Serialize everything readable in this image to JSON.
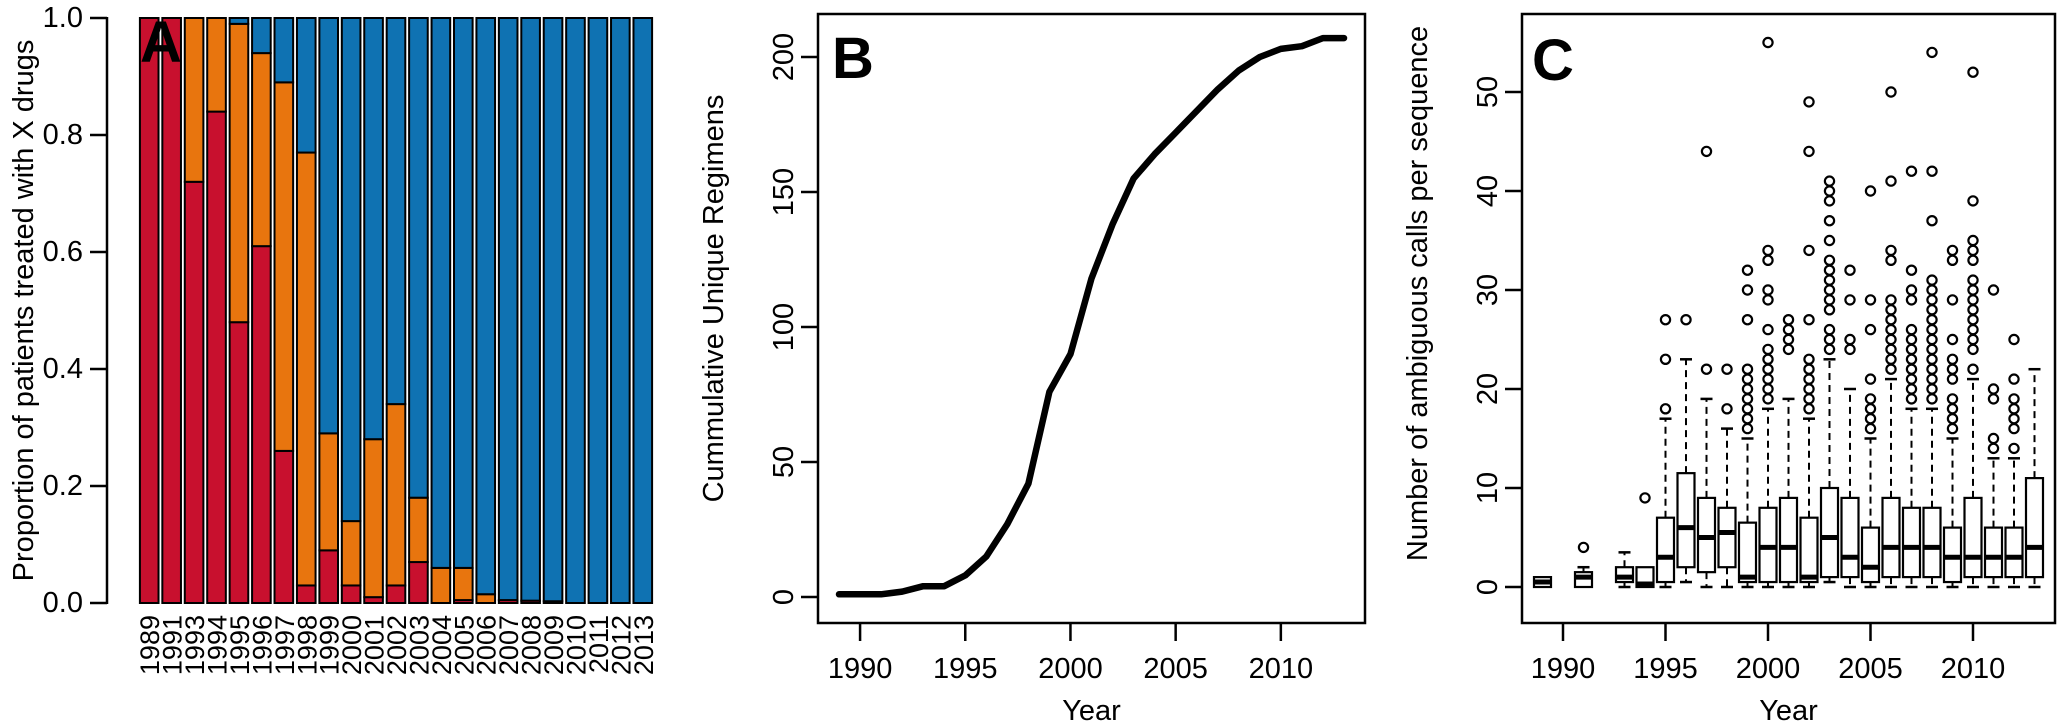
{
  "figure": {
    "background": "#ffffff",
    "text_color": "#000000"
  },
  "chart_data": [
    {
      "type": "bar",
      "panel_label": "A",
      "panel_label_color": "#ffffff",
      "xlabel": "",
      "ylabel": "Proportion of patients treated with X drugs",
      "ylim": [
        0,
        1
      ],
      "yticks": [
        "0.0",
        "0.2",
        "0.4",
        "0.6",
        "0.8",
        "1.0"
      ],
      "grid": false,
      "legend": "none",
      "categories": [
        1989,
        1991,
        1993,
        1994,
        1995,
        1996,
        1997,
        1998,
        1999,
        2000,
        2001,
        2002,
        2003,
        2004,
        2005,
        2006,
        2007,
        2008,
        2009,
        2010,
        2011,
        2012,
        2013
      ],
      "series": [
        {
          "name": "red",
          "color": "#C8102E",
          "values": [
            1,
            1,
            0.72,
            0.84,
            0.48,
            0.61,
            0.26,
            0.03,
            0.09,
            0.03,
            0.01,
            0.03,
            0.07,
            0,
            0.005,
            0,
            0.005,
            0.004,
            0.003,
            0,
            0,
            0,
            0
          ]
        },
        {
          "name": "orange",
          "color": "#E8750E",
          "values": [
            0,
            0,
            0.28,
            0.16,
            0.51,
            0.33,
            0.63,
            0.74,
            0.2,
            0.11,
            0.27,
            0.31,
            0.11,
            0.06,
            0.055,
            0.015,
            0,
            0,
            0,
            0,
            0,
            0,
            0
          ]
        },
        {
          "name": "blue",
          "color": "#0F72B2",
          "values": [
            0,
            0,
            0,
            0,
            0.01,
            0.06,
            0.11,
            0.23,
            0.71,
            0.86,
            0.72,
            0.66,
            0.82,
            0.94,
            0.94,
            0.985,
            0.995,
            0.996,
            0.997,
            1,
            1,
            1,
            1
          ]
        }
      ]
    },
    {
      "type": "line",
      "panel_label": "B",
      "panel_label_color": "#000000",
      "xlabel": "Year",
      "ylabel": "Cummulative Unique Regimens",
      "xticks": [
        1990,
        1995,
        2000,
        2005,
        2010
      ],
      "yticks": [
        0,
        50,
        100,
        150,
        200
      ],
      "xlim": [
        1988,
        2014
      ],
      "ylim": [
        -12,
        216
      ],
      "grid": false,
      "line_color": "#000000",
      "x": [
        1989,
        1990,
        1991,
        1992,
        1993,
        1994,
        1995,
        1996,
        1997,
        1998,
        1999,
        2000,
        2001,
        2002,
        2003,
        2004,
        2005,
        2006,
        2007,
        2008,
        2009,
        2010,
        2011,
        2012,
        2013
      ],
      "y": [
        1,
        1,
        1,
        2,
        4,
        4,
        8,
        15,
        27,
        42,
        76,
        90,
        118,
        138,
        155,
        164,
        172,
        180,
        188,
        195,
        200,
        203,
        204,
        207,
        207
      ]
    },
    {
      "type": "boxplot",
      "panel_label": "C",
      "panel_label_color": "#000000",
      "xlabel": "Year",
      "ylabel": "Number of ambiguous calls per sequence",
      "xticks": [
        1990,
        1995,
        2000,
        2005,
        2010
      ],
      "yticks": [
        0,
        10,
        20,
        30,
        40,
        50
      ],
      "xlim": [
        1988,
        2014
      ],
      "ylim": [
        -3.5,
        58
      ],
      "grid": false,
      "boxes": [
        {
          "year": 1989,
          "low": 0,
          "q1": 0,
          "med": 0.5,
          "q3": 1,
          "high": 1,
          "outliers": []
        },
        {
          "year": 1991,
          "low": 0,
          "q1": 0,
          "med": 1,
          "q3": 1.5,
          "high": 2,
          "outliers": [
            4
          ]
        },
        {
          "year": 1993,
          "low": 0,
          "q1": 0.5,
          "med": 1,
          "q3": 2,
          "high": 3.5,
          "outliers": []
        },
        {
          "year": 1994,
          "low": 0,
          "q1": 0,
          "med": 0.3,
          "q3": 2,
          "high": 2,
          "outliers": [
            9
          ]
        },
        {
          "year": 1995,
          "low": 0,
          "q1": 0.5,
          "med": 3,
          "q3": 7,
          "high": 17,
          "outliers": [
            18,
            23,
            27
          ]
        },
        {
          "year": 1996,
          "low": 0.5,
          "q1": 2,
          "med": 6,
          "q3": 11.5,
          "high": 23,
          "outliers": [
            27
          ]
        },
        {
          "year": 1997,
          "low": 0,
          "q1": 1.5,
          "med": 5,
          "q3": 9,
          "high": 19,
          "outliers": [
            22,
            44
          ]
        },
        {
          "year": 1998,
          "low": 0,
          "q1": 2,
          "med": 5.5,
          "q3": 8,
          "high": 16,
          "outliers": [
            18,
            22
          ]
        },
        {
          "year": 1999,
          "low": 0,
          "q1": 0.5,
          "med": 1,
          "q3": 6.5,
          "high": 15,
          "outliers": [
            16,
            17,
            18,
            19,
            20,
            21,
            22,
            27,
            30,
            32
          ]
        },
        {
          "year": 2000,
          "low": 0,
          "q1": 0.5,
          "med": 4,
          "q3": 8,
          "high": 18,
          "outliers": [
            19,
            20,
            21,
            22,
            23,
            24,
            26,
            29,
            30,
            33,
            34,
            55
          ]
        },
        {
          "year": 2001,
          "low": 0,
          "q1": 0.5,
          "med": 4,
          "q3": 9,
          "high": 19,
          "outliers": [
            24,
            25,
            26,
            27
          ]
        },
        {
          "year": 2002,
          "low": 0,
          "q1": 0.5,
          "med": 1,
          "q3": 7,
          "high": 17,
          "outliers": [
            18,
            19,
            20,
            21,
            22,
            23,
            27,
            34,
            44,
            49
          ]
        },
        {
          "year": 2003,
          "low": 0.5,
          "q1": 1,
          "med": 5,
          "q3": 10,
          "high": 23,
          "outliers": [
            24,
            25,
            26,
            28,
            29,
            30,
            31,
            32,
            33,
            35,
            37,
            39,
            40,
            41
          ]
        },
        {
          "year": 2004,
          "low": 0,
          "q1": 1,
          "med": 3,
          "q3": 9,
          "high": 20,
          "outliers": [
            24,
            25,
            29,
            32
          ]
        },
        {
          "year": 2005,
          "low": 0,
          "q1": 0.5,
          "med": 2,
          "q3": 6,
          "high": 15,
          "outliers": [
            16,
            17,
            18,
            19,
            21,
            26,
            29,
            40
          ]
        },
        {
          "year": 2006,
          "low": 0,
          "q1": 1,
          "med": 4,
          "q3": 9,
          "high": 21,
          "outliers": [
            22,
            23,
            24,
            25,
            26,
            27,
            28,
            29,
            33,
            34,
            41,
            50
          ]
        },
        {
          "year": 2007,
          "low": 0,
          "q1": 1,
          "med": 4,
          "q3": 8,
          "high": 18,
          "outliers": [
            19,
            20,
            21,
            22,
            23,
            24,
            25,
            26,
            29,
            30,
            32,
            42
          ]
        },
        {
          "year": 2008,
          "low": 0,
          "q1": 1,
          "med": 4,
          "q3": 8,
          "high": 18,
          "outliers": [
            19,
            20,
            21,
            22,
            23,
            24,
            25,
            26,
            27,
            28,
            29,
            30,
            31,
            37,
            42,
            54
          ]
        },
        {
          "year": 2009,
          "low": 0,
          "q1": 0.5,
          "med": 3,
          "q3": 6,
          "high": 15,
          "outliers": [
            16,
            17,
            18,
            19,
            21,
            22,
            23,
            25,
            29,
            33,
            34
          ]
        },
        {
          "year": 2010,
          "low": 0,
          "q1": 1,
          "med": 3,
          "q3": 9,
          "high": 21,
          "outliers": [
            22,
            24,
            25,
            26,
            27,
            28,
            29,
            30,
            31,
            33,
            34,
            35,
            39,
            52
          ]
        },
        {
          "year": 2011,
          "low": 0,
          "q1": 1,
          "med": 3,
          "q3": 6,
          "high": 13,
          "outliers": [
            14,
            15,
            19,
            20,
            30
          ]
        },
        {
          "year": 2012,
          "low": 0,
          "q1": 1,
          "med": 3,
          "q3": 6,
          "high": 13,
          "outliers": [
            14,
            16,
            17,
            18,
            19,
            21,
            25
          ]
        },
        {
          "year": 2013,
          "low": 0,
          "q1": 1,
          "med": 4,
          "q3": 11,
          "high": 22,
          "outliers": []
        }
      ]
    }
  ]
}
